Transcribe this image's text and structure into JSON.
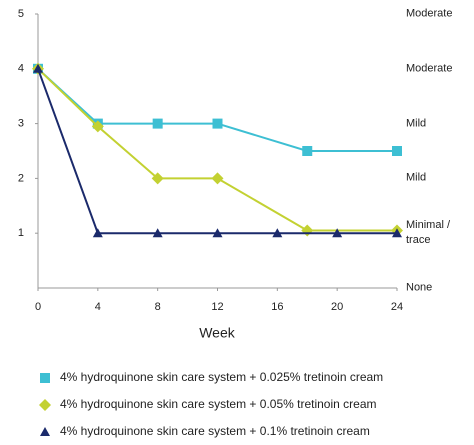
{
  "chart_data": {
    "type": "line",
    "xlabel": "Week",
    "xlim": [
      0,
      24
    ],
    "xticks": [
      0,
      4,
      8,
      12,
      16,
      20,
      24
    ],
    "ylim": [
      0,
      5
    ],
    "yticks": [
      1,
      2,
      3,
      4,
      5
    ],
    "y2lim": [
      0,
      5
    ],
    "y2ticks": [
      {
        "value": 0,
        "label": "None"
      },
      {
        "value": 1,
        "label": "Minimal / trace"
      },
      {
        "value": 2,
        "label": "Mild"
      },
      {
        "value": 3,
        "label": "Mild"
      },
      {
        "value": 4,
        "label": "Moderate"
      },
      {
        "value": 5,
        "label": "Moderate"
      }
    ],
    "legend": "bottom",
    "series": [
      {
        "name": "4% hydroquinone skin care system + 0.025% tretinoin cream",
        "color": "#3dbfd3",
        "marker": "square",
        "x": [
          0,
          4,
          8,
          12,
          18,
          24
        ],
        "values": [
          4,
          3,
          3,
          3,
          2.5,
          2.5
        ]
      },
      {
        "name": "4% hydroquinone skin care system + 0.05% tretinoin cream",
        "color": "#c3d132",
        "marker": "diamond",
        "x": [
          0,
          4,
          8,
          12,
          18,
          24
        ],
        "values": [
          4,
          2.95,
          2,
          2,
          1.05,
          1.05
        ]
      },
      {
        "name": "4% hydroquinone skin care system + 0.1% tretinoin cream",
        "color": "#1b2a6b",
        "marker": "triangle",
        "x": [
          0,
          4,
          8,
          12,
          16,
          20,
          24
        ],
        "values": [
          4,
          1,
          1,
          1,
          1,
          1,
          1
        ]
      }
    ]
  }
}
